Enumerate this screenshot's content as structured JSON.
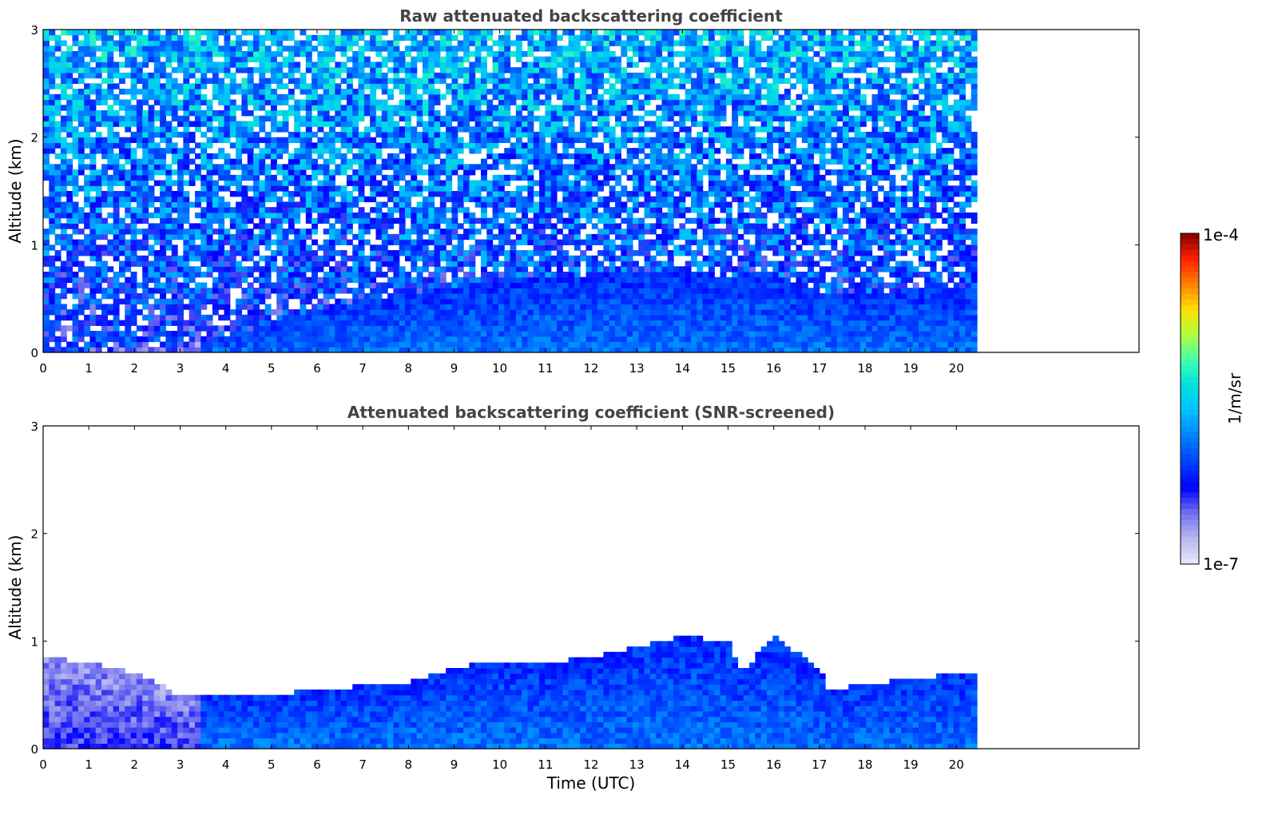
{
  "chart_data": [
    {
      "type": "heatmap",
      "title": "Raw attenuated backscattering coefficient",
      "xlabel": "",
      "ylabel": "Altitude (km)",
      "xlim": [
        0,
        24
      ],
      "ylim": [
        0,
        3
      ],
      "x_ticks": [
        0,
        1,
        2,
        3,
        4,
        5,
        6,
        7,
        8,
        9,
        10,
        11,
        12,
        13,
        14,
        15,
        16,
        17,
        18,
        19,
        20
      ],
      "y_ticks": [
        0,
        1,
        2,
        3
      ],
      "data_x_range": [
        0,
        20.45
      ],
      "description_of_field": {
        "boundary_layer_top_km": {
          "x": [
            0,
            3,
            4,
            5,
            6,
            7,
            8,
            9,
            10,
            11,
            12,
            13,
            14,
            15,
            16,
            17,
            18,
            19,
            20,
            20.45
          ],
          "y": [
            0.0,
            0.05,
            0.15,
            0.28,
            0.4,
            0.5,
            0.55,
            0.62,
            0.68,
            0.7,
            0.72,
            0.75,
            0.8,
            0.7,
            0.75,
            0.55,
            0.55,
            0.58,
            0.6,
            0.62
          ]
        },
        "near_surface_log10_beta": -5.9,
        "upper_noise_log10_beta_range": [
          -6.6,
          -5.2
        ]
      }
    },
    {
      "type": "heatmap",
      "title": "Attenuated backscattering coefficient (SNR-screened)",
      "xlabel": "Time (UTC)",
      "ylabel": "Altitude (km)",
      "xlim": [
        0,
        24
      ],
      "ylim": [
        0,
        3
      ],
      "x_ticks": [
        0,
        1,
        2,
        3,
        4,
        5,
        6,
        7,
        8,
        9,
        10,
        11,
        12,
        13,
        14,
        15,
        16,
        17,
        18,
        19,
        20
      ],
      "y_ticks": [
        0,
        1,
        2,
        3
      ],
      "data_x_range": [
        0,
        20.45
      ],
      "description_of_field": {
        "signal_top_km": {
          "x": [
            0,
            1,
            2,
            3,
            4,
            5,
            6,
            7,
            8,
            9,
            10,
            11,
            12,
            13,
            14,
            15,
            15.3,
            16,
            17,
            17.2,
            18,
            19,
            20,
            20.45
          ],
          "y": [
            0.85,
            0.8,
            0.7,
            0.5,
            0.5,
            0.5,
            0.55,
            0.58,
            0.62,
            0.75,
            0.82,
            0.8,
            0.85,
            0.95,
            1.05,
            1.0,
            0.7,
            1.05,
            0.75,
            0.55,
            0.6,
            0.65,
            0.7,
            0.72
          ]
        },
        "near_surface_log10_beta": -5.9
      }
    }
  ],
  "colorbar": {
    "max_label": "1e-4",
    "min_label": "1e-7",
    "label": "1/m/sr",
    "scale": "log",
    "range": [
      1e-07,
      0.0001
    ],
    "colors": [
      "#e8e8f8",
      "#b8b8f0",
      "#7070f0",
      "#0000ff",
      "#0040ff",
      "#0080ff",
      "#00c0ff",
      "#00e0e0",
      "#40ffb0",
      "#b0ff40",
      "#ffe000",
      "#ff8000",
      "#ff2000",
      "#800000"
    ]
  }
}
